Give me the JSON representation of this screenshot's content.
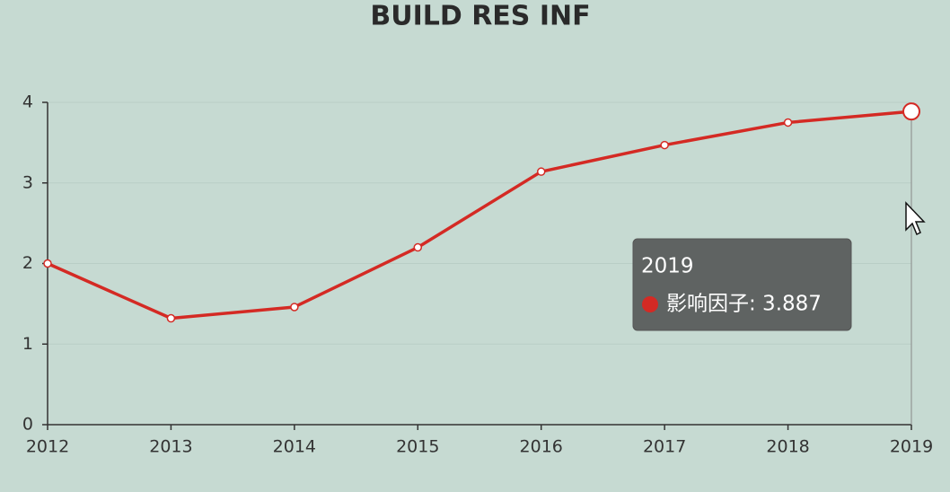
{
  "chart_data": {
    "type": "line",
    "title": "BUILD RES INF",
    "categories": [
      "2012",
      "2013",
      "2014",
      "2015",
      "2016",
      "2017",
      "2018",
      "2019"
    ],
    "series": [
      {
        "name": "影响因子",
        "color": "#d42a24",
        "values": [
          2.0,
          1.32,
          1.46,
          2.2,
          3.14,
          3.47,
          3.75,
          3.887
        ]
      }
    ],
    "ylim": [
      0,
      4
    ],
    "yticks": [
      0,
      1,
      2,
      3,
      4
    ],
    "grid": true,
    "tooltip": {
      "category": "2019",
      "text": "影响因子: 3.887"
    }
  }
}
